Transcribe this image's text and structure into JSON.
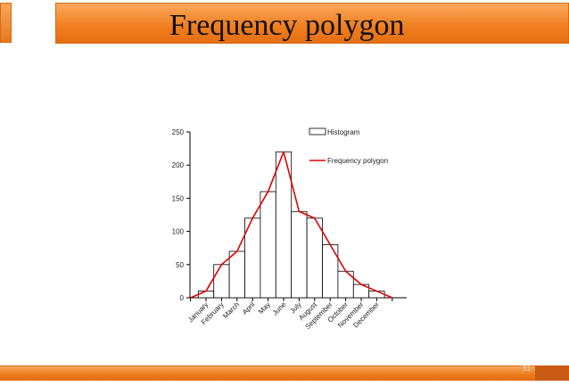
{
  "slide": {
    "title": "Frequency polygon",
    "slide_number": "31"
  },
  "colors": {
    "title_bar": "#ef7d1e",
    "polygon_line": "#e00000",
    "bar_fill": "#ffffff",
    "bar_stroke": "#000000"
  },
  "chart_data": {
    "type": "bar",
    "categories": [
      "January",
      "February",
      "March",
      "April",
      "May",
      "June",
      "July",
      "August",
      "September",
      "October",
      "November",
      "December"
    ],
    "ylim": [
      0,
      250
    ],
    "yticks": [
      0,
      50,
      100,
      150,
      200,
      250
    ],
    "grid": false,
    "legend_position": "top-right",
    "series": [
      {
        "name": "Histogram",
        "kind": "bar",
        "values": [
          10,
          50,
          70,
          120,
          160,
          220,
          130,
          120,
          80,
          40,
          20,
          10
        ]
      },
      {
        "name": "Frequency polygon",
        "kind": "line",
        "color": "#e00000",
        "values": [
          10,
          50,
          70,
          120,
          160,
          220,
          130,
          120,
          80,
          40,
          20,
          10
        ],
        "start_value": 0,
        "end_value": 0
      }
    ]
  }
}
